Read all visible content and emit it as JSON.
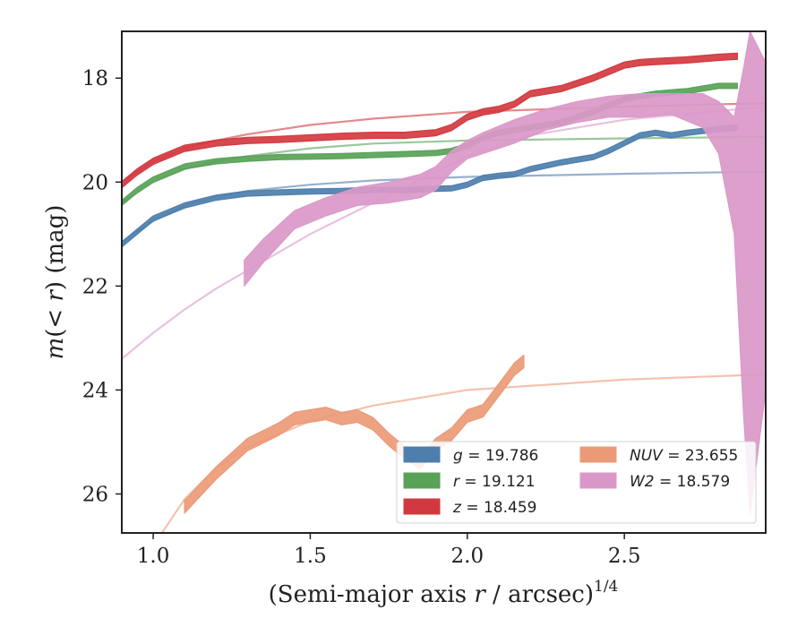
{
  "chart_data": {
    "type": "line",
    "xlabel_main": "(Semi-major axis ",
    "xlabel_var": "r",
    "xlabel_mid": " / arcsec)",
    "xlabel_exp": "1/4",
    "ylabel_main": "m",
    "ylabel_paren_open": "(",
    "ylabel_var": "< r",
    "ylabel_rest": ") (mag)",
    "xlim": [
      0.9,
      2.95
    ],
    "ylim": [
      26.75,
      17.1
    ],
    "y_inverted": true,
    "xticks": [
      1.0,
      1.5,
      2.0,
      2.5
    ],
    "xtick_labels": [
      "1.0",
      "1.5",
      "2.0",
      "2.5"
    ],
    "yticks": [
      18,
      20,
      22,
      24,
      26
    ],
    "ytick_labels": [
      "18",
      "20",
      "22",
      "24",
      "26"
    ],
    "legend_placement": "lower-right",
    "grid": false,
    "legend": [
      {
        "band": "g",
        "value": "= 19.786",
        "color": "#4e7fac"
      },
      {
        "band": "r",
        "value": "= 19.121",
        "color": "#59a258"
      },
      {
        "band": "z",
        "value": "= 18.459",
        "color": "#d2393f"
      },
      {
        "band": "NUV",
        "value": "= 23.655",
        "color": "#eb9a77"
      },
      {
        "band": "W2",
        "value": "= 18.579",
        "color": "#da98c8"
      }
    ],
    "series": [
      {
        "name": "g",
        "color": "#4e7fac",
        "band_halfwidth": 0.05,
        "data_x": [
          0.9,
          0.95,
          1.0,
          1.1,
          1.2,
          1.3,
          1.4,
          1.5,
          1.6,
          1.7,
          1.8,
          1.9,
          1.95,
          2.0,
          2.05,
          2.1,
          2.15,
          2.2,
          2.3,
          2.4,
          2.45,
          2.5,
          2.55,
          2.6,
          2.65,
          2.7,
          2.8,
          2.86
        ],
        "data_y": [
          21.2,
          20.95,
          20.7,
          20.45,
          20.3,
          20.22,
          20.2,
          20.18,
          20.17,
          20.15,
          20.15,
          20.13,
          20.12,
          20.05,
          19.92,
          19.88,
          19.85,
          19.75,
          19.62,
          19.52,
          19.4,
          19.25,
          19.1,
          19.05,
          19.1,
          19.05,
          18.98,
          18.95
        ],
        "model_x": [
          0.9,
          0.95,
          1.0,
          1.1,
          1.2,
          1.3,
          1.5,
          1.7,
          2.0,
          2.5,
          2.95
        ],
        "model_y": [
          21.15,
          20.95,
          20.75,
          20.45,
          20.28,
          20.17,
          20.05,
          19.97,
          19.9,
          19.84,
          19.8
        ]
      },
      {
        "name": "r",
        "color": "#59a258",
        "band_halfwidth": 0.05,
        "data_x": [
          0.9,
          0.95,
          1.0,
          1.1,
          1.2,
          1.3,
          1.4,
          1.5,
          1.6,
          1.7,
          1.8,
          1.9,
          1.95,
          2.0,
          2.05,
          2.1,
          2.2,
          2.3,
          2.4,
          2.5,
          2.6,
          2.7,
          2.8,
          2.86
        ],
        "data_y": [
          20.4,
          20.15,
          19.95,
          19.7,
          19.6,
          19.55,
          19.52,
          19.51,
          19.5,
          19.48,
          19.46,
          19.44,
          19.4,
          19.3,
          19.15,
          19.05,
          18.95,
          18.85,
          18.65,
          18.4,
          18.3,
          18.25,
          18.15,
          18.15
        ],
        "model_x": [
          0.9,
          0.95,
          1.0,
          1.1,
          1.2,
          1.3,
          1.5,
          1.7,
          2.0,
          2.5,
          2.95
        ],
        "model_y": [
          20.4,
          20.2,
          20.0,
          19.75,
          19.6,
          19.5,
          19.35,
          19.26,
          19.2,
          19.16,
          19.13
        ]
      },
      {
        "name": "z",
        "color": "#d2393f",
        "band_halfwidth": 0.06,
        "data_x": [
          0.9,
          0.95,
          1.0,
          1.1,
          1.2,
          1.3,
          1.4,
          1.5,
          1.6,
          1.7,
          1.8,
          1.9,
          1.95,
          2.0,
          2.05,
          2.1,
          2.15,
          2.2,
          2.3,
          2.4,
          2.5,
          2.55,
          2.6,
          2.7,
          2.8,
          2.86
        ],
        "data_y": [
          20.05,
          19.8,
          19.6,
          19.35,
          19.25,
          19.2,
          19.18,
          19.15,
          19.12,
          19.1,
          19.1,
          19.05,
          18.95,
          18.75,
          18.65,
          18.6,
          18.5,
          18.3,
          18.2,
          18.0,
          17.75,
          17.7,
          17.68,
          17.65,
          17.6,
          17.58
        ],
        "model_x": [
          0.9,
          0.95,
          1.0,
          1.1,
          1.2,
          1.3,
          1.5,
          1.7,
          2.0,
          2.5,
          2.95
        ],
        "model_y": [
          20.0,
          19.8,
          19.6,
          19.35,
          19.2,
          19.08,
          18.9,
          18.78,
          18.65,
          18.55,
          18.48
        ]
      },
      {
        "name": "NUV",
        "color": "#eb9a77",
        "band_halfwidth": 0.12,
        "data_x": [
          1.1,
          1.2,
          1.3,
          1.4,
          1.45,
          1.5,
          1.55,
          1.6,
          1.65,
          1.7,
          1.75,
          1.8,
          1.85,
          1.9,
          1.95,
          2.0,
          2.05,
          2.1,
          2.15,
          2.18
        ],
        "data_y": [
          26.25,
          25.6,
          25.05,
          24.75,
          24.55,
          24.5,
          24.45,
          24.55,
          24.5,
          24.65,
          24.95,
          25.2,
          25.4,
          25.05,
          24.85,
          24.5,
          24.4,
          24.0,
          23.6,
          23.45
        ],
        "model_x": [
          0.9,
          1.0,
          1.1,
          1.2,
          1.3,
          1.5,
          1.7,
          2.0,
          2.5,
          2.95
        ],
        "model_y": [
          28.5,
          27.0,
          26.1,
          25.5,
          25.1,
          24.6,
          24.3,
          24.0,
          23.8,
          23.7
        ]
      },
      {
        "name": "W2",
        "color": "#da98c8",
        "data_x": [
          1.29,
          1.35,
          1.45,
          1.55,
          1.65,
          1.75,
          1.85,
          1.9,
          1.95,
          2.0,
          2.05,
          2.15,
          2.25,
          2.35,
          2.45,
          2.55,
          2.65,
          2.75,
          2.8,
          2.85,
          2.88,
          2.9,
          2.95
        ],
        "data_upper": [
          21.5,
          21.1,
          20.55,
          20.3,
          20.1,
          20.0,
          19.85,
          19.7,
          19.4,
          19.2,
          19.05,
          18.8,
          18.6,
          18.45,
          18.35,
          18.3,
          18.3,
          18.3,
          18.45,
          18.75,
          17.8,
          17.1,
          17.7
        ],
        "data_lower": [
          22.0,
          21.55,
          20.9,
          20.65,
          20.45,
          20.4,
          20.3,
          20.15,
          19.8,
          19.55,
          19.45,
          19.25,
          19.0,
          18.85,
          18.75,
          18.75,
          18.7,
          18.95,
          19.45,
          21.0,
          24.5,
          26.4,
          24.0
        ],
        "model_x": [
          0.9,
          1.0,
          1.1,
          1.2,
          1.3,
          1.4,
          1.5,
          1.6,
          1.7,
          1.8,
          1.9,
          2.0,
          2.2,
          2.5,
          2.95
        ],
        "model_y": [
          23.4,
          22.9,
          22.45,
          22.05,
          21.7,
          21.35,
          21.0,
          20.7,
          20.4,
          20.1,
          19.8,
          19.5,
          19.1,
          18.8,
          18.55
        ]
      }
    ]
  }
}
